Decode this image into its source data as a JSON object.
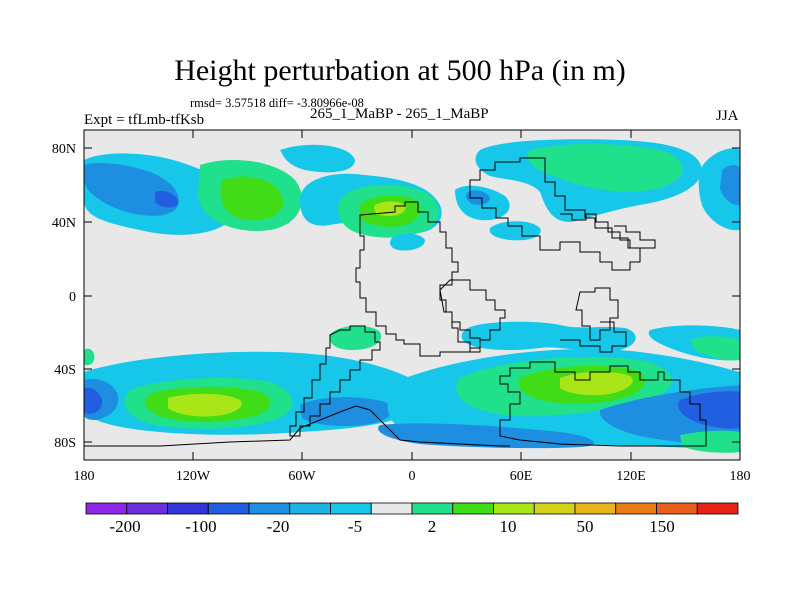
{
  "title": "Height perturbation at 500 hPa (in m)",
  "stats_line": "rmsd= 3.57518 diff= -3.80966e-08",
  "left_subtitle": "Expt = tfLmb-tfKsb",
  "center_subtitle": "265_1_MaBP - 265_1_MaBP",
  "season": "JJA",
  "axes": {
    "lat_labels": [
      "80N",
      "40N",
      "0",
      "40S",
      "80S"
    ],
    "lon_labels": [
      "180",
      "120W",
      "60W",
      "0",
      "60E",
      "120E",
      "180"
    ]
  },
  "colorbar": {
    "colors": [
      "#8f27e8",
      "#6c2ddd",
      "#3435d9",
      "#215fe0",
      "#1d8ee0",
      "#1fb2e6",
      "#16c7ea",
      "#e8e8e8",
      "#20e08c",
      "#40dc18",
      "#a8e618",
      "#d6d21a",
      "#e8b41a",
      "#e87c16",
      "#e85e1c",
      "#e82416"
    ],
    "labels": [
      "-200",
      "-100",
      "-20",
      "-5",
      "2",
      "10",
      "50",
      "150"
    ]
  },
  "colors": {
    "land_background": "#e8e8e8",
    "contour_cyan": "#16c7ea",
    "contour_blue": "#1d8ee0",
    "contour_deep_blue": "#215fe0",
    "contour_green": "#20e08c",
    "contour_lime": "#40dc18",
    "contour_yellowgreen": "#a8e618"
  }
}
